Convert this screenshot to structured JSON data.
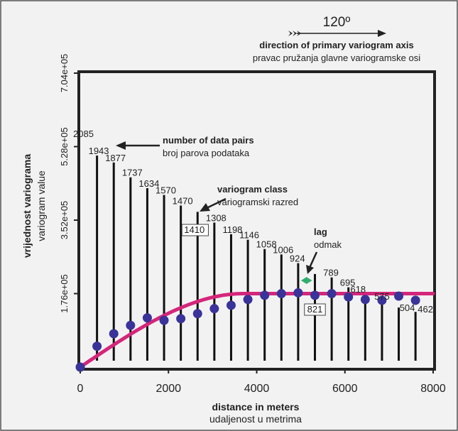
{
  "header": {
    "angle": "120º",
    "direction_en": "direction of primary variogram axis",
    "direction_hr": "pravac pružanja glavne variogramske osi"
  },
  "axes": {
    "xlabel_en": "distance in meters",
    "xlabel_hr": "udaljenost u metrima",
    "ylabel_hr": "vrijednost variograma",
    "ylabel_en": "variogram value"
  },
  "annotations": {
    "pairs_en": "number of data pairs",
    "pairs_hr": "broj parova podataka",
    "class_en": "variogram class",
    "class_hr": "variogramski razred",
    "lag_en": "lag",
    "lag_hr": "odmak"
  },
  "colors": {
    "model_curve": "#d4267a",
    "points": "#3a3399",
    "lag_arrow": "#2fae6f",
    "frame": "#222222"
  },
  "chart_data": {
    "type": "scatter",
    "xlim": [
      0,
      8000
    ],
    "ylim": [
      0,
      704000
    ],
    "x_ticks": [
      0,
      2000,
      4000,
      6000,
      8000
    ],
    "x_tick_labels": [
      "0",
      "2000",
      "4000",
      "6000",
      "8000"
    ],
    "y_ticks": [
      176000,
      352000,
      528000,
      704000
    ],
    "y_tick_labels": [
      "1.76e+05",
      "3.52e+05",
      "5.28e+05",
      "7.04e+05"
    ],
    "grid": false,
    "experimental_points": {
      "x": [
        0,
        380,
        760,
        1140,
        1520,
        1900,
        2280,
        2660,
        3040,
        3420,
        3800,
        4180,
        4560,
        4940,
        5320,
        5700,
        6080,
        6460,
        6840,
        7220,
        7600
      ],
      "y": [
        0,
        50000,
        80000,
        100000,
        118000,
        112000,
        116000,
        128000,
        140000,
        148000,
        162000,
        172000,
        176000,
        178000,
        172000,
        176000,
        168000,
        162000,
        160000,
        170000,
        160000
      ]
    },
    "pairs": {
      "x": [
        0,
        380,
        760,
        1140,
        1520,
        1900,
        2280,
        2660,
        3040,
        3420,
        3800,
        4180,
        4560,
        4940,
        5320,
        5700,
        6080,
        6460,
        6840,
        7220,
        7600
      ],
      "counts": [
        2085,
        1943,
        1877,
        1737,
        1634,
        1570,
        1470,
        1410,
        1308,
        1198,
        1146,
        1058,
        1006,
        924,
        821,
        789,
        695,
        618,
        575,
        504,
        462
      ]
    },
    "model": {
      "type": "spherical",
      "nugget": 0,
      "sill": 176000,
      "range": 3700,
      "x_max": 8000
    },
    "highlight": {
      "class_value": 1410,
      "lag_value": 821
    }
  }
}
